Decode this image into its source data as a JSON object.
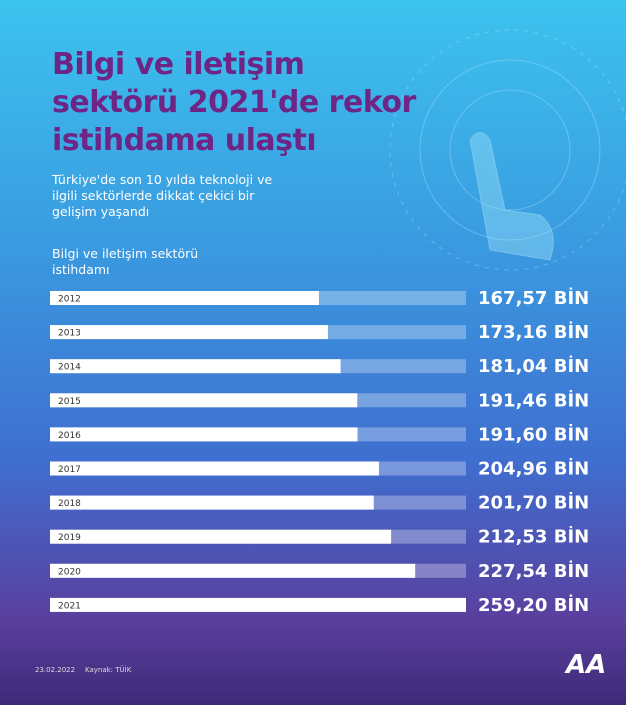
{
  "title": "Bilgi ve iletişim sektörü 2021'de rekor istihdama ulaştı",
  "subtitle": "Türkiye'de son 10 yılda teknoloji ve ilgili sektörlerde dikkat çekici bir gelişim yaşandı",
  "chart_data": {
    "type": "bar",
    "orientation": "horizontal",
    "axis_label": "Bilgi ve iletişim sektörü istihdamı",
    "categories": [
      "2012",
      "2013",
      "2014",
      "2015",
      "2016",
      "2017",
      "2018",
      "2019",
      "2020",
      "2021"
    ],
    "values": [
      167.57,
      173.16,
      181.04,
      191.46,
      191.6,
      204.96,
      201.7,
      212.53,
      227.54,
      259.2
    ],
    "value_labels": [
      "167,57 BİN",
      "173,16 BİN",
      "181,04 BİN",
      "191,46 BİN",
      "191,60 BİN",
      "204,96 BİN",
      "201,70 BİN",
      "212,53 BİN",
      "227,54 BİN",
      "259,20 BİN"
    ],
    "color": "#ffffff"
  },
  "footer": {
    "date": "23.02.2022",
    "source": "Kaynak: TÜİK",
    "logo": "AA"
  }
}
